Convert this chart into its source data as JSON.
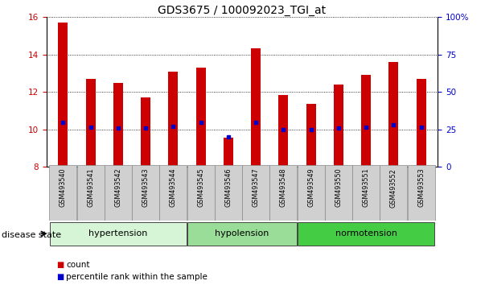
{
  "title": "GDS3675 / 100092023_TGI_at",
  "samples": [
    "GSM493540",
    "GSM493541",
    "GSM493542",
    "GSM493543",
    "GSM493544",
    "GSM493545",
    "GSM493546",
    "GSM493547",
    "GSM493548",
    "GSM493549",
    "GSM493550",
    "GSM493551",
    "GSM493552",
    "GSM493553"
  ],
  "bar_heights": [
    15.7,
    12.7,
    12.5,
    11.7,
    13.1,
    13.3,
    9.55,
    14.35,
    11.85,
    11.35,
    12.4,
    12.9,
    13.6,
    12.7
  ],
  "bar_base": 8.0,
  "percentile_values": [
    10.35,
    10.1,
    10.05,
    10.05,
    10.15,
    10.35,
    9.6,
    10.35,
    10.0,
    10.0,
    10.05,
    10.1,
    10.25,
    10.1
  ],
  "bar_color": "#cc0000",
  "percentile_color": "#0000cc",
  "ylim_left": [
    8,
    16
  ],
  "ylim_right": [
    0,
    100
  ],
  "yticks_left": [
    8,
    10,
    12,
    14,
    16
  ],
  "yticks_right": [
    0,
    25,
    50,
    75,
    100
  ],
  "groups": [
    {
      "label": "hypertension",
      "start": 0,
      "end": 4,
      "color": "#d6f5d6"
    },
    {
      "label": "hypolension",
      "start": 5,
      "end": 8,
      "color": "#99dd99"
    },
    {
      "label": "normotension",
      "start": 9,
      "end": 13,
      "color": "#44cc44"
    }
  ],
  "disease_state_label": "disease state",
  "bg_color": "#ffffff",
  "tick_label_color_left": "#cc0000",
  "tick_label_color_right": "#0000cc",
  "grid_style": "dotted",
  "bar_width": 0.35,
  "sample_box_color": "#d0d0d0",
  "sample_box_edge": "#888888"
}
